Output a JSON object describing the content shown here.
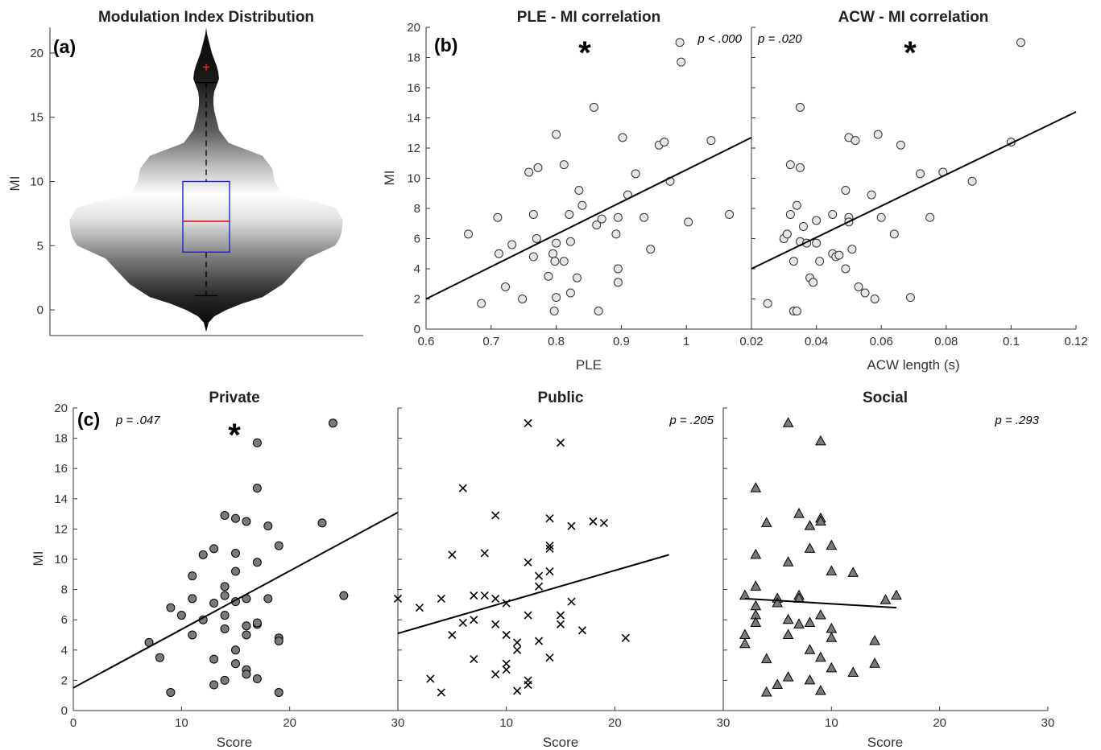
{
  "chart_data": [
    {
      "id": "a",
      "type": "violin",
      "panel_label": "(a)",
      "title": "Modulation Index Distribution",
      "ylabel": "MI",
      "ylim": [
        -2,
        22
      ],
      "yticks": [
        0,
        5,
        10,
        15,
        20
      ],
      "box": {
        "q1": 4.5,
        "median": 6.9,
        "q3": 10.0,
        "whisker_low": 1.1,
        "whisker_high": 17.7,
        "outliers": [
          18.9
        ]
      },
      "colors": {
        "box": "#2222cc",
        "median": "#dd2222",
        "outlier": "#dd2222"
      }
    },
    {
      "id": "b1",
      "type": "scatter",
      "panel_label": "(b)",
      "title": "PLE - MI correlation",
      "xlabel": "PLE",
      "ylabel": "MI",
      "xlim": [
        0.6,
        1.1
      ],
      "ylim": [
        0,
        20
      ],
      "xticks": [
        0.6,
        0.7,
        0.8,
        0.9,
        1
      ],
      "yticks": [
        0,
        2,
        4,
        6,
        8,
        10,
        12,
        14,
        16,
        18,
        20
      ],
      "p_text": "p < .000",
      "star": "*",
      "marker": "circle-light",
      "fit": {
        "x": [
          0.6,
          1.1
        ],
        "y": [
          2.0,
          12.7
        ]
      },
      "points": [
        [
          0.665,
          6.3
        ],
        [
          0.685,
          1.7
        ],
        [
          0.71,
          7.4
        ],
        [
          0.712,
          5.0
        ],
        [
          0.722,
          2.8
        ],
        [
          0.732,
          5.6
        ],
        [
          0.748,
          2.0
        ],
        [
          0.758,
          10.4
        ],
        [
          0.765,
          7.6
        ],
        [
          0.765,
          4.8
        ],
        [
          0.77,
          6.0
        ],
        [
          0.772,
          10.7
        ],
        [
          0.788,
          3.5
        ],
        [
          0.795,
          5.0
        ],
        [
          0.797,
          1.2
        ],
        [
          0.798,
          4.5
        ],
        [
          0.8,
          5.7
        ],
        [
          0.8,
          2.1
        ],
        [
          0.8,
          12.9
        ],
        [
          0.812,
          10.9
        ],
        [
          0.812,
          4.5
        ],
        [
          0.82,
          7.6
        ],
        [
          0.822,
          5.8
        ],
        [
          0.822,
          2.4
        ],
        [
          0.832,
          3.4
        ],
        [
          0.835,
          9.2
        ],
        [
          0.84,
          8.2
        ],
        [
          0.858,
          14.7
        ],
        [
          0.862,
          6.9
        ],
        [
          0.865,
          1.2
        ],
        [
          0.87,
          7.3
        ],
        [
          0.892,
          6.3
        ],
        [
          0.895,
          4.0
        ],
        [
          0.895,
          3.1
        ],
        [
          0.895,
          7.4
        ],
        [
          0.902,
          12.7
        ],
        [
          0.91,
          8.9
        ],
        [
          0.922,
          10.3
        ],
        [
          0.935,
          7.4
        ],
        [
          0.945,
          5.3
        ],
        [
          0.958,
          12.2
        ],
        [
          0.966,
          12.4
        ],
        [
          0.975,
          9.8
        ],
        [
          0.99,
          19.0
        ],
        [
          0.992,
          17.7
        ],
        [
          1.003,
          7.1
        ],
        [
          1.038,
          12.5
        ],
        [
          1.066,
          7.6
        ]
      ]
    },
    {
      "id": "b2",
      "type": "scatter",
      "title": "ACW - MI correlation",
      "xlabel": "ACW length (s)",
      "xlim": [
        0.02,
        0.12
      ],
      "ylim": [
        0,
        20
      ],
      "xticks": [
        0.02,
        0.04,
        0.06,
        0.08,
        0.1,
        0.12
      ],
      "p_text": "p = .020",
      "star": "*",
      "marker": "circle-light",
      "fit": {
        "x": [
          0.02,
          0.12
        ],
        "y": [
          4.0,
          14.4
        ]
      },
      "points": [
        [
          0.025,
          1.7
        ],
        [
          0.03,
          6.0
        ],
        [
          0.031,
          6.3
        ],
        [
          0.032,
          10.9
        ],
        [
          0.032,
          7.6
        ],
        [
          0.033,
          4.5
        ],
        [
          0.033,
          1.2
        ],
        [
          0.034,
          1.2
        ],
        [
          0.034,
          8.2
        ],
        [
          0.035,
          5.8
        ],
        [
          0.035,
          10.7
        ],
        [
          0.035,
          14.7
        ],
        [
          0.036,
          6.8
        ],
        [
          0.037,
          5.7
        ],
        [
          0.038,
          3.4
        ],
        [
          0.039,
          3.1
        ],
        [
          0.04,
          7.2
        ],
        [
          0.04,
          5.7
        ],
        [
          0.041,
          4.5
        ],
        [
          0.045,
          5.0
        ],
        [
          0.045,
          7.6
        ],
        [
          0.046,
          4.8
        ],
        [
          0.047,
          4.9
        ],
        [
          0.049,
          4.0
        ],
        [
          0.049,
          9.2
        ],
        [
          0.05,
          7.4
        ],
        [
          0.05,
          7.1
        ],
        [
          0.05,
          12.7
        ],
        [
          0.051,
          5.3
        ],
        [
          0.052,
          12.5
        ],
        [
          0.053,
          2.8
        ],
        [
          0.055,
          2.4
        ],
        [
          0.057,
          8.9
        ],
        [
          0.058,
          2.0
        ],
        [
          0.059,
          12.9
        ],
        [
          0.06,
          7.4
        ],
        [
          0.064,
          6.3
        ],
        [
          0.066,
          12.2
        ],
        [
          0.069,
          2.1
        ],
        [
          0.072,
          10.3
        ],
        [
          0.075,
          7.4
        ],
        [
          0.079,
          10.4
        ],
        [
          0.088,
          9.8
        ],
        [
          0.1,
          12.4
        ],
        [
          0.103,
          19.0
        ]
      ]
    },
    {
      "id": "c1",
      "type": "scatter",
      "panel_label": "(c)",
      "title": "Private",
      "xlabel": "Score",
      "ylabel": "MI",
      "xlim": [
        0,
        30
      ],
      "ylim": [
        0,
        20
      ],
      "xticks": [
        0,
        10,
        20,
        30
      ],
      "yticks": [
        0,
        2,
        4,
        6,
        8,
        10,
        12,
        14,
        16,
        18,
        20
      ],
      "p_text": "p = .047",
      "star": "*",
      "marker": "circle-dark",
      "fit": {
        "x": [
          0,
          30
        ],
        "y": [
          1.5,
          13.1
        ]
      },
      "points": [
        [
          7,
          4.5
        ],
        [
          8,
          3.5
        ],
        [
          9,
          6.8
        ],
        [
          9,
          1.2
        ],
        [
          10,
          6.3
        ],
        [
          11,
          8.9
        ],
        [
          11,
          7.4
        ],
        [
          11,
          5.0
        ],
        [
          12,
          6.0
        ],
        [
          12,
          10.3
        ],
        [
          13,
          10.7
        ],
        [
          13,
          7.1
        ],
        [
          13,
          3.4
        ],
        [
          13,
          1.7
        ],
        [
          14,
          12.9
        ],
        [
          14,
          8.2
        ],
        [
          14,
          7.6
        ],
        [
          14,
          6.3
        ],
        [
          14,
          5.4
        ],
        [
          14,
          2.0
        ],
        [
          15,
          12.7
        ],
        [
          15,
          10.4
        ],
        [
          15,
          9.2
        ],
        [
          15,
          7.2
        ],
        [
          15,
          4.0
        ],
        [
          15,
          3.1
        ],
        [
          16,
          12.5
        ],
        [
          16,
          7.4
        ],
        [
          16,
          5.6
        ],
        [
          16,
          5.0
        ],
        [
          16,
          2.7
        ],
        [
          16,
          2.4
        ],
        [
          17,
          17.7
        ],
        [
          17,
          14.7
        ],
        [
          17,
          9.8
        ],
        [
          17,
          5.7
        ],
        [
          17,
          5.8
        ],
        [
          17,
          2.1
        ],
        [
          18,
          12.2
        ],
        [
          18,
          7.4
        ],
        [
          19,
          10.9
        ],
        [
          19,
          4.8
        ],
        [
          19,
          4.6
        ],
        [
          19,
          1.2
        ],
        [
          23,
          12.4
        ],
        [
          24,
          19.0
        ],
        [
          25,
          7.6
        ]
      ]
    },
    {
      "id": "c2",
      "type": "scatter",
      "title": "Public",
      "xlabel": "Score",
      "xlim": [
        0,
        30
      ],
      "ylim": [
        0,
        20
      ],
      "xticks": [
        10,
        20,
        30
      ],
      "p_text": "p = .205",
      "marker": "x",
      "fit": {
        "x": [
          0,
          25
        ],
        "y": [
          5.1,
          10.3
        ]
      },
      "points": [
        [
          0,
          7.4
        ],
        [
          2,
          6.8
        ],
        [
          3,
          2.1
        ],
        [
          4,
          7.4
        ],
        [
          4,
          1.2
        ],
        [
          5,
          10.3
        ],
        [
          5,
          5.0
        ],
        [
          6,
          14.7
        ],
        [
          6,
          5.8
        ],
        [
          7,
          7.6
        ],
        [
          7,
          6.0
        ],
        [
          7,
          3.4
        ],
        [
          8,
          10.4
        ],
        [
          8,
          7.6
        ],
        [
          9,
          12.9
        ],
        [
          9,
          7.4
        ],
        [
          9,
          5.7
        ],
        [
          9,
          2.4
        ],
        [
          10,
          7.1
        ],
        [
          10,
          5.0
        ],
        [
          10,
          3.1
        ],
        [
          10,
          2.7
        ],
        [
          11,
          4.5
        ],
        [
          11,
          4.0
        ],
        [
          11,
          1.3
        ],
        [
          12,
          19.0
        ],
        [
          12,
          9.8
        ],
        [
          12,
          6.3
        ],
        [
          12,
          2.0
        ],
        [
          12,
          1.7
        ],
        [
          13,
          8.9
        ],
        [
          13,
          8.2
        ],
        [
          13,
          4.6
        ],
        [
          14,
          12.7
        ],
        [
          14,
          10.9
        ],
        [
          14,
          10.7
        ],
        [
          14,
          9.2
        ],
        [
          14,
          3.5
        ],
        [
          15,
          17.7
        ],
        [
          15,
          6.3
        ],
        [
          15,
          5.7
        ],
        [
          16,
          12.2
        ],
        [
          16,
          7.2
        ],
        [
          17,
          5.3
        ],
        [
          18,
          12.5
        ],
        [
          19,
          12.4
        ],
        [
          21,
          4.8
        ]
      ]
    },
    {
      "id": "c3",
      "type": "scatter",
      "title": "Social",
      "xlabel": "Score",
      "xlim": [
        0,
        30
      ],
      "ylim": [
        0,
        20
      ],
      "xticks": [
        10,
        20,
        30
      ],
      "p_text": "p = .293",
      "marker": "triangle",
      "fit": {
        "x": [
          2,
          16
        ],
        "y": [
          7.4,
          6.8
        ]
      },
      "points": [
        [
          2,
          7.6
        ],
        [
          2,
          5.0
        ],
        [
          2,
          4.4
        ],
        [
          3,
          14.7
        ],
        [
          3,
          10.3
        ],
        [
          3,
          8.2
        ],
        [
          3,
          6.9
        ],
        [
          3,
          6.3
        ],
        [
          3,
          5.8
        ],
        [
          4,
          12.4
        ],
        [
          4,
          3.4
        ],
        [
          4,
          1.2
        ],
        [
          5,
          7.4
        ],
        [
          5,
          7.1
        ],
        [
          5,
          1.7
        ],
        [
          6,
          19.0
        ],
        [
          6,
          9.8
        ],
        [
          6,
          6.0
        ],
        [
          6,
          5.0
        ],
        [
          6,
          2.2
        ],
        [
          7,
          13.0
        ],
        [
          7,
          7.6
        ],
        [
          7,
          7.4
        ],
        [
          7,
          5.7
        ],
        [
          8,
          12.2
        ],
        [
          8,
          10.7
        ],
        [
          8,
          5.8
        ],
        [
          8,
          4.0
        ],
        [
          8,
          2.0
        ],
        [
          9,
          17.8
        ],
        [
          9,
          12.7
        ],
        [
          9,
          12.5
        ],
        [
          9,
          6.3
        ],
        [
          9,
          3.5
        ],
        [
          9,
          1.3
        ],
        [
          10,
          10.9
        ],
        [
          10,
          9.2
        ],
        [
          10,
          5.4
        ],
        [
          10,
          4.8
        ],
        [
          10,
          2.8
        ],
        [
          12,
          9.1
        ],
        [
          12,
          2.5
        ],
        [
          14,
          4.6
        ],
        [
          14,
          3.1
        ],
        [
          15,
          7.3
        ],
        [
          16,
          7.6
        ]
      ]
    }
  ]
}
